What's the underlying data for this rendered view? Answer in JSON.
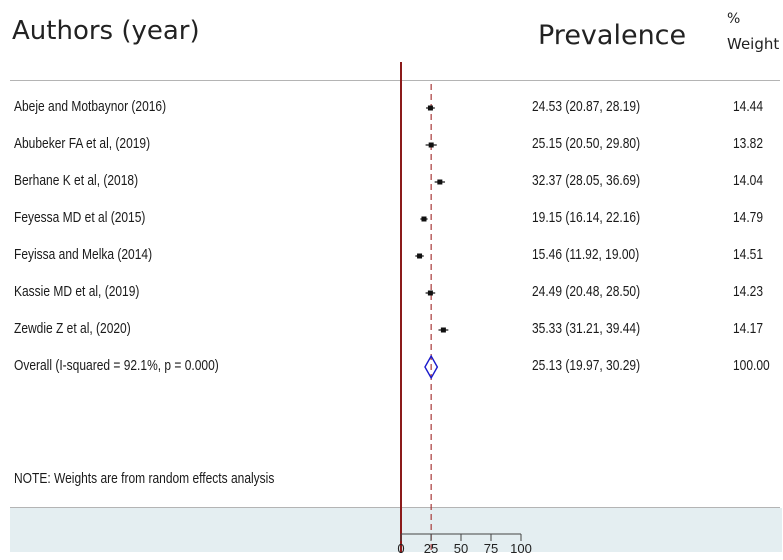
{
  "headers": {
    "authors": "Authors (year)",
    "prevalence": "Prevalence",
    "weight_pct": "%",
    "weight_label": "Weight"
  },
  "note": "NOTE: Weights are from random effects analysis",
  "colors": {
    "null_line": "#8b1a1a",
    "ref_line": "#a83a3a",
    "diamond": "#1a1acc",
    "point": "#111111",
    "band": "#e4eef1"
  },
  "chart_data": {
    "type": "forest",
    "xlim": [
      0,
      100
    ],
    "xticks": [
      0,
      25,
      50,
      75,
      100
    ],
    "overall_ref": 25.13,
    "studies": [
      {
        "label": "Abeje and Motbaynor (2016)",
        "est": 24.53,
        "lo": 20.87,
        "hi": 28.19,
        "ci": "24.53 (20.87, 28.19)",
        "weight": "14.44"
      },
      {
        "label": "Abubeker FA et al, (2019)",
        "est": 25.15,
        "lo": 20.5,
        "hi": 29.8,
        "ci": "25.15 (20.50, 29.80)",
        "weight": "13.82"
      },
      {
        "label": "Berhane K et al, (2018)",
        "est": 32.37,
        "lo": 28.05,
        "hi": 36.69,
        "ci": "32.37 (28.05, 36.69)",
        "weight": "14.04"
      },
      {
        "label": "Feyessa MD et al (2015)",
        "est": 19.15,
        "lo": 16.14,
        "hi": 22.16,
        "ci": "19.15 (16.14, 22.16)",
        "weight": "14.79"
      },
      {
        "label": "Feyissa and Melka (2014)",
        "est": 15.46,
        "lo": 11.92,
        "hi": 19.0,
        "ci": "15.46 (11.92, 19.00)",
        "weight": "14.51"
      },
      {
        "label": "Kassie MD et al, (2019)",
        "est": 24.49,
        "lo": 20.48,
        "hi": 28.5,
        "ci": "24.49 (20.48, 28.50)",
        "weight": "14.23"
      },
      {
        "label": "Zewdie Z et al, (2020)",
        "est": 35.33,
        "lo": 31.21,
        "hi": 39.44,
        "ci": "35.33 (31.21, 39.44)",
        "weight": "14.17"
      }
    ],
    "overall": {
      "label": "Overall  (I-squared = 92.1%, p = 0.000)",
      "est": 25.13,
      "lo": 19.97,
      "hi": 30.29,
      "ci": "25.13 (19.97, 30.29)",
      "weight": "100.00"
    }
  }
}
